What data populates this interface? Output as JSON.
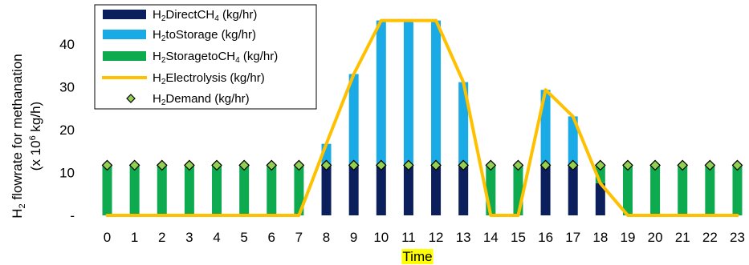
{
  "chart_data": {
    "type": "bar",
    "x": [
      0,
      1,
      2,
      3,
      4,
      5,
      6,
      7,
      8,
      9,
      10,
      11,
      12,
      13,
      14,
      15,
      16,
      17,
      18,
      19,
      20,
      21,
      22,
      23
    ],
    "xlabel": "Time",
    "ylabel_line1": "H2 flowrate for methanation",
    "ylabel_line2": "(x 10^6 kg/h)",
    "ylim": [
      0,
      48
    ],
    "yticks": [
      {
        "value": 0,
        "label": "-"
      },
      {
        "value": 10,
        "label": "10"
      },
      {
        "value": 20,
        "label": "20"
      },
      {
        "value": 30,
        "label": "30"
      },
      {
        "value": 40,
        "label": "40"
      }
    ],
    "grid": false,
    "legend_position": "top-left",
    "colors": {
      "direct": "#0b1f5c",
      "storage": "#1aabe6",
      "storage_to_ch4": "#0daa50",
      "electrolysis": "#ffc000",
      "demand_fill": "#92d050",
      "demand_edge": "#000000",
      "xlabel_highlight": "#ffff00"
    },
    "series": [
      {
        "key": "direct",
        "name": "H2DirectCH4 (kg/hr)",
        "kind": "bar",
        "values": [
          0,
          0,
          0,
          0,
          0,
          0,
          0,
          0,
          11.7,
          11.7,
          11.7,
          11.7,
          11.7,
          11.7,
          0,
          0,
          11.7,
          11.7,
          7.5,
          0,
          0,
          0,
          0,
          0
        ]
      },
      {
        "key": "storage",
        "name": "H2toStorage (kg/hr)",
        "kind": "bar",
        "values": [
          0,
          0,
          0,
          0,
          0,
          0,
          0,
          0,
          5.0,
          21.3,
          33.8,
          33.8,
          33.8,
          19.4,
          0,
          0,
          17.6,
          11.4,
          0,
          0,
          0,
          0,
          0,
          0
        ]
      },
      {
        "key": "storage_to_ch4",
        "name": "H2StoragetoCH4 (kg/hr)",
        "kind": "bar",
        "values": [
          11.7,
          11.7,
          11.7,
          11.7,
          11.7,
          11.7,
          11.7,
          11.7,
          0,
          0,
          0,
          0,
          0,
          0,
          11.7,
          11.7,
          0,
          0,
          4.2,
          11.7,
          11.7,
          11.7,
          11.7,
          11.7
        ]
      },
      {
        "key": "electrolysis",
        "name": "H2Electrolysis (kg/hr)",
        "kind": "line",
        "values": [
          0,
          0,
          0,
          0,
          0,
          0,
          0,
          0,
          16.7,
          33.0,
          45.5,
          45.5,
          45.5,
          31.1,
          0,
          0,
          29.3,
          23.1,
          7.5,
          0,
          0,
          0,
          0,
          0
        ]
      },
      {
        "key": "demand",
        "name": "H2Demand (kg/hr)",
        "kind": "marker",
        "values": [
          11.7,
          11.7,
          11.7,
          11.7,
          11.7,
          11.7,
          11.7,
          11.7,
          11.7,
          11.7,
          11.7,
          11.7,
          11.7,
          11.7,
          11.7,
          11.7,
          11.7,
          11.7,
          11.7,
          11.7,
          11.7,
          11.7,
          11.7,
          11.7
        ]
      }
    ],
    "legend": [
      {
        "key": "direct",
        "prefix": "H",
        "sub": "2",
        "mid": "DirectCH",
        "sub2": "4",
        "suffix": " (kg/hr)"
      },
      {
        "key": "storage",
        "prefix": "H",
        "sub": "2",
        "mid": "toStorage (kg/hr)",
        "sub2": "",
        "suffix": ""
      },
      {
        "key": "storage_to_ch4",
        "prefix": "H",
        "sub": "2",
        "mid": "StoragetoCH",
        "sub2": "4",
        "suffix": " (kg/hr)"
      },
      {
        "key": "electrolysis",
        "prefix": "H",
        "sub": "2",
        "mid": "Electrolysis (kg/hr)",
        "sub2": "",
        "suffix": ""
      },
      {
        "key": "demand",
        "prefix": "H",
        "sub": "2",
        "mid": "Demand (kg/hr)",
        "sub2": "",
        "suffix": ""
      }
    ]
  }
}
